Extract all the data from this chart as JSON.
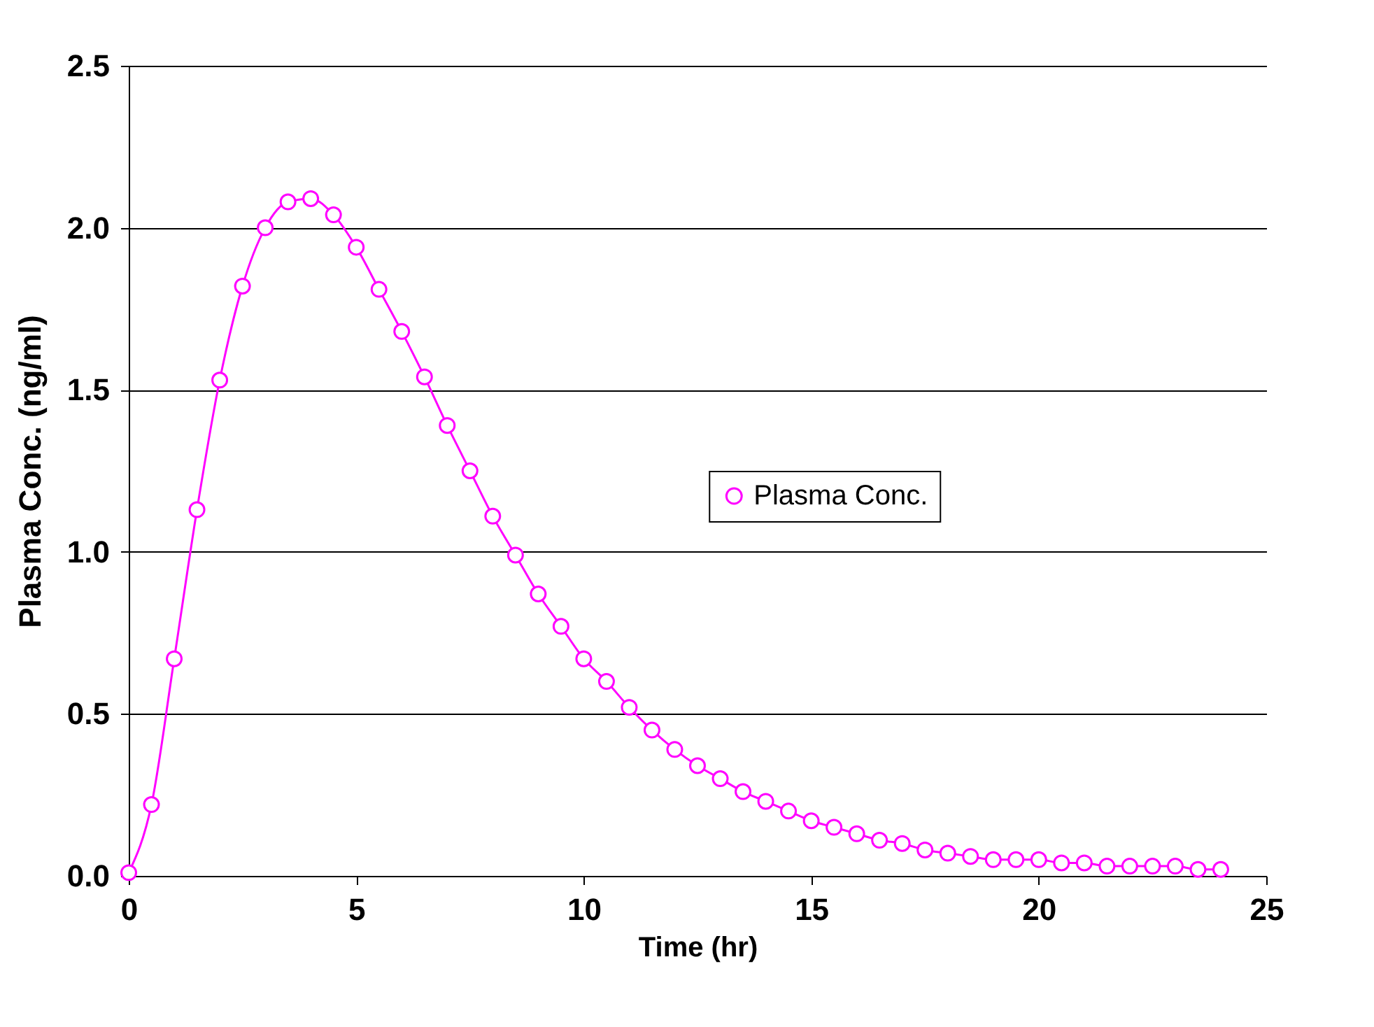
{
  "chart_data": {
    "type": "line",
    "xlabel": "Time (hr)",
    "ylabel": "Plasma Conc. (ng/ml)",
    "x": [
      0,
      0.5,
      1,
      1.5,
      2,
      2.5,
      3,
      3.5,
      4,
      4.5,
      5,
      5.5,
      6,
      6.5,
      7,
      7.5,
      8,
      8.5,
      9,
      9.5,
      10,
      10.5,
      11,
      11.5,
      12,
      12.5,
      13,
      13.5,
      14,
      14.5,
      15,
      15.5,
      16,
      16.5,
      17,
      17.5,
      18,
      18.5,
      19,
      19.5,
      20,
      20.5,
      21,
      21.5,
      22,
      22.5,
      23,
      23.5,
      24
    ],
    "series": [
      {
        "name": "Plasma Conc.",
        "color": "#ff00ff",
        "values": [
          0.01,
          0.22,
          0.67,
          1.13,
          1.53,
          1.82,
          2.0,
          2.08,
          2.09,
          2.04,
          1.94,
          1.81,
          1.68,
          1.54,
          1.39,
          1.25,
          1.11,
          0.99,
          0.87,
          0.77,
          0.67,
          0.6,
          0.52,
          0.45,
          0.39,
          0.34,
          0.3,
          0.26,
          0.23,
          0.2,
          0.17,
          0.15,
          0.13,
          0.11,
          0.1,
          0.08,
          0.07,
          0.06,
          0.05,
          0.05,
          0.05,
          0.04,
          0.04,
          0.03,
          0.03,
          0.03,
          0.03,
          0.02,
          0.02
        ]
      }
    ],
    "xlim": [
      0,
      25
    ],
    "xticks": [
      0,
      5,
      10,
      15,
      20,
      25
    ],
    "ylim": [
      0,
      2.5
    ],
    "yticks": [
      {
        "value": 0,
        "label": "0.0"
      },
      {
        "value": 0.5,
        "label": "0.5"
      },
      {
        "value": 1,
        "label": "1.0"
      },
      {
        "value": 1.5,
        "label": "1.5"
      },
      {
        "value": 2,
        "label": "2.0"
      },
      {
        "value": 2.5,
        "label": "2.5"
      }
    ],
    "grid": "y",
    "legend": "right",
    "marker": "circle",
    "line_style": "solid"
  }
}
